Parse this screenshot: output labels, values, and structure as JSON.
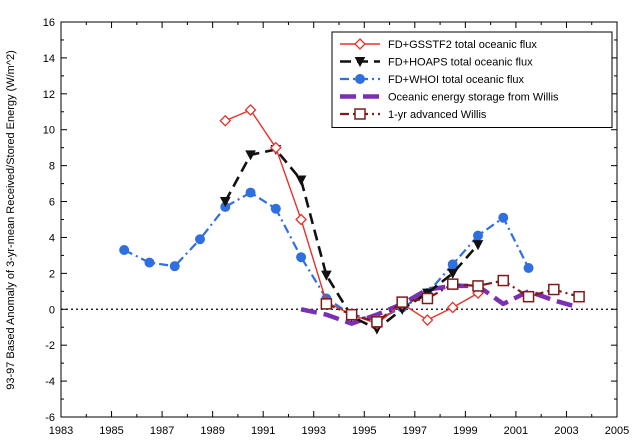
{
  "chart_data": {
    "type": "line",
    "ylabel": "93-97 Based Anomaly of 3-yr-mean Received/Stored Energy (W/m^2)",
    "xlim": [
      1983,
      2005
    ],
    "ylim": [
      -6,
      16
    ],
    "x_ticks": [
      1983,
      1985,
      1987,
      1989,
      1991,
      1993,
      1995,
      1997,
      1999,
      2001,
      2003,
      2005
    ],
    "y_ticks": [
      -6,
      -4,
      -2,
      0,
      2,
      4,
      6,
      8,
      10,
      12,
      14,
      16
    ],
    "zero_line": true,
    "legend_position": "top-right",
    "series": [
      {
        "name": "FD+GSSTF2 total oceanic flux",
        "color": "#e8312a",
        "line_style": "solid",
        "marker": "diamond-open",
        "x": [
          1989.5,
          1990.5,
          1991.5,
          1992.5,
          1993.5,
          1994.5,
          1995.5,
          1996.5,
          1997.5,
          1998.5,
          1999.5
        ],
        "y": [
          10.5,
          11.1,
          9.0,
          5.0,
          0.4,
          -0.3,
          -0.8,
          0.3,
          -0.6,
          0.1,
          0.9
        ]
      },
      {
        "name": "FD+HOAPS total oceanic flux",
        "color": "#111111",
        "line_style": "dashed",
        "marker": "triangle-down",
        "x": [
          1989.5,
          1990.5,
          1991.5,
          1992.5,
          1993.5,
          1994.5,
          1995.5,
          1996.5,
          1997.5,
          1998.5,
          1999.5
        ],
        "y": [
          6.0,
          8.6,
          8.9,
          7.2,
          1.9,
          -0.4,
          -1.1,
          0.0,
          0.9,
          2.0,
          3.6
        ]
      },
      {
        "name": "FD+WHOI total oceanic flux",
        "color": "#2f6fe0",
        "line_style": "dash-dot",
        "marker": "circle",
        "x": [
          1985.5,
          1986.5,
          1987.5,
          1988.5,
          1989.5,
          1990.5,
          1991.5,
          1992.5,
          1993.5,
          1994.5,
          1995.5,
          1996.5,
          1997.5,
          1998.5,
          1999.5,
          2000.5,
          2001.5
        ],
        "y": [
          3.3,
          2.6,
          2.4,
          3.9,
          5.7,
          6.5,
          5.6,
          2.9,
          0.6,
          -0.3,
          -0.6,
          0.1,
          0.9,
          2.5,
          4.1,
          5.1,
          2.3
        ]
      },
      {
        "name": "Oceanic energy storage from Willis",
        "color": "#7a2fb5",
        "line_style": "thick-dashed",
        "marker": "none",
        "x": [
          1992.5,
          1993.5,
          1994.5,
          1995.5,
          1996.5,
          1997.5,
          1998.5,
          1999.5,
          2000.5,
          2001.5,
          2002.5,
          2003.5
        ],
        "y": [
          0.0,
          -0.3,
          -0.8,
          -0.3,
          0.3,
          1.1,
          1.3,
          1.3,
          0.3,
          1.0,
          0.5,
          0.1
        ]
      },
      {
        "name": "1-yr advanced Willis",
        "color": "#7b1c1c",
        "line_style": "dash-dot",
        "marker": "square-open",
        "x": [
          1993.5,
          1994.5,
          1995.5,
          1996.5,
          1997.5,
          1998.5,
          1999.5,
          2000.5,
          2001.5,
          2002.5,
          2003.5
        ],
        "y": [
          0.3,
          -0.3,
          -0.7,
          0.4,
          0.6,
          1.4,
          1.3,
          1.6,
          0.7,
          1.1,
          0.7
        ]
      }
    ]
  }
}
